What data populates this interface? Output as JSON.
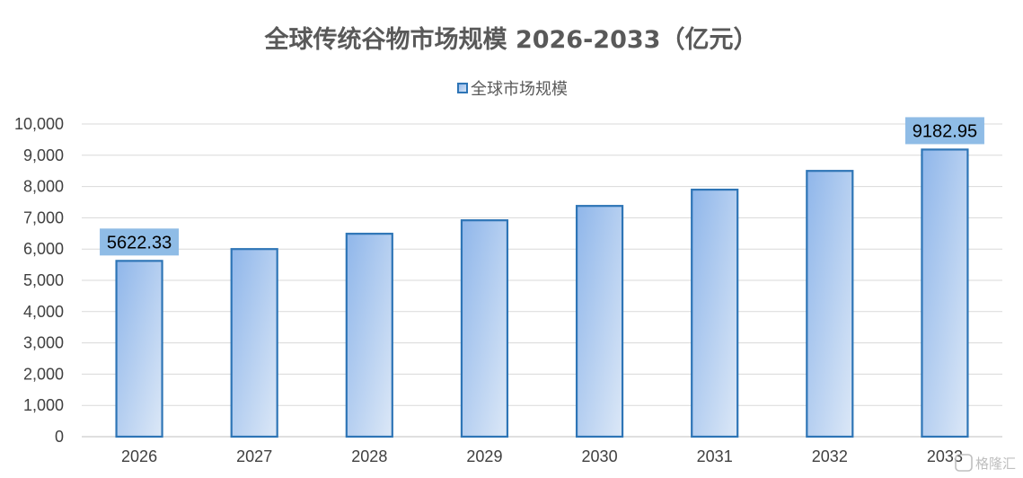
{
  "chart_data": {
    "type": "bar",
    "title": "全球传统谷物市场规模 2026-2033（亿元）",
    "xlabel": "",
    "ylabel": "",
    "categories": [
      "2026",
      "2027",
      "2028",
      "2029",
      "2030",
      "2031",
      "2032",
      "2033"
    ],
    "series": [
      {
        "name": "全球市场规模",
        "values": [
          5622.33,
          6000,
          6490,
          6920,
          7380,
          7900,
          8500,
          9182.95
        ]
      }
    ],
    "ylim": [
      0,
      10000
    ],
    "yticks": [
      "0",
      "1,000",
      "2,000",
      "3,000",
      "4,000",
      "5,000",
      "6,000",
      "7,000",
      "8,000",
      "9,000",
      "10,000"
    ],
    "data_labels": [
      {
        "index": 0,
        "text": "5622.33"
      },
      {
        "index": 7,
        "text": "9182.95"
      }
    ],
    "grid": true,
    "legend": "top-center",
    "colors": {
      "bar_top": "#8fb6ea",
      "bar_bottom": "#dce8f7",
      "bar_stroke": "#2e75b6",
      "label_bg": "#8fbce6",
      "grid": "#d9d9d9"
    }
  },
  "watermark": {
    "text": "格隆汇"
  }
}
